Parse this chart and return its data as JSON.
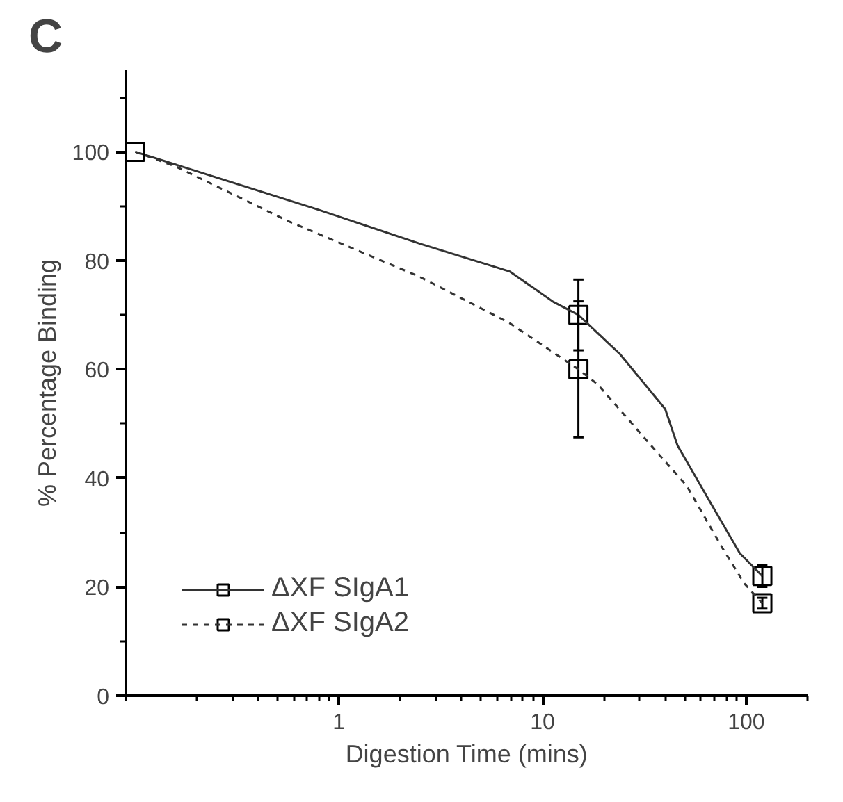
{
  "chart_data": {
    "type": "scatter",
    "xlabel": "Digestion Time (mins)",
    "ylabel": "% Percentage Binding",
    "annotations": [
      "C"
    ],
    "log": "x",
    "xlim": [
      0.09,
      200
    ],
    "xticks": [
      1,
      10,
      100
    ],
    "ylim": [
      0,
      115
    ],
    "yticks": [
      0,
      20,
      40,
      60,
      80,
      100
    ],
    "grid": false,
    "legend": "bottom left",
    "marker": "square",
    "series": [
      {
        "name": "ΔXF SIgA1",
        "color": "#000000",
        "x": [
          15,
          120
        ],
        "values": [
          70,
          22
        ],
        "errors": [
          6.5,
          2
        ]
      },
      {
        "type": "line",
        "marker": "none",
        "color": "#333333",
        "line_style": "solid",
        "x": [
          0.1,
          0.24,
          0.8,
          2.5,
          6.9,
          11.3,
          15,
          24,
          40,
          46,
          66,
          93,
          120
        ],
        "values": [
          100,
          95.5,
          89.3,
          83.1,
          78,
          72.4,
          70,
          62.8,
          52.7,
          46,
          35.8,
          26.2,
          22
        ]
      },
      {
        "name": "ΔXF SIgA2",
        "color": "#000000",
        "x": [
          0.1,
          15,
          120
        ],
        "values": [
          100,
          60,
          17
        ],
        "errors": [
          null,
          12.5,
          1
        ]
      },
      {
        "type": "line",
        "marker": "none",
        "color": "#333333",
        "line_style": "dashed",
        "x": [
          0.1,
          0.16,
          0.56,
          2.5,
          6.9,
          15,
          18.7,
          36,
          51,
          76,
          98,
          120
        ],
        "values": [
          100,
          97.2,
          87.3,
          77,
          68.5,
          60,
          57.2,
          45,
          38.6,
          27.3,
          20.6,
          17
        ]
      }
    ]
  }
}
